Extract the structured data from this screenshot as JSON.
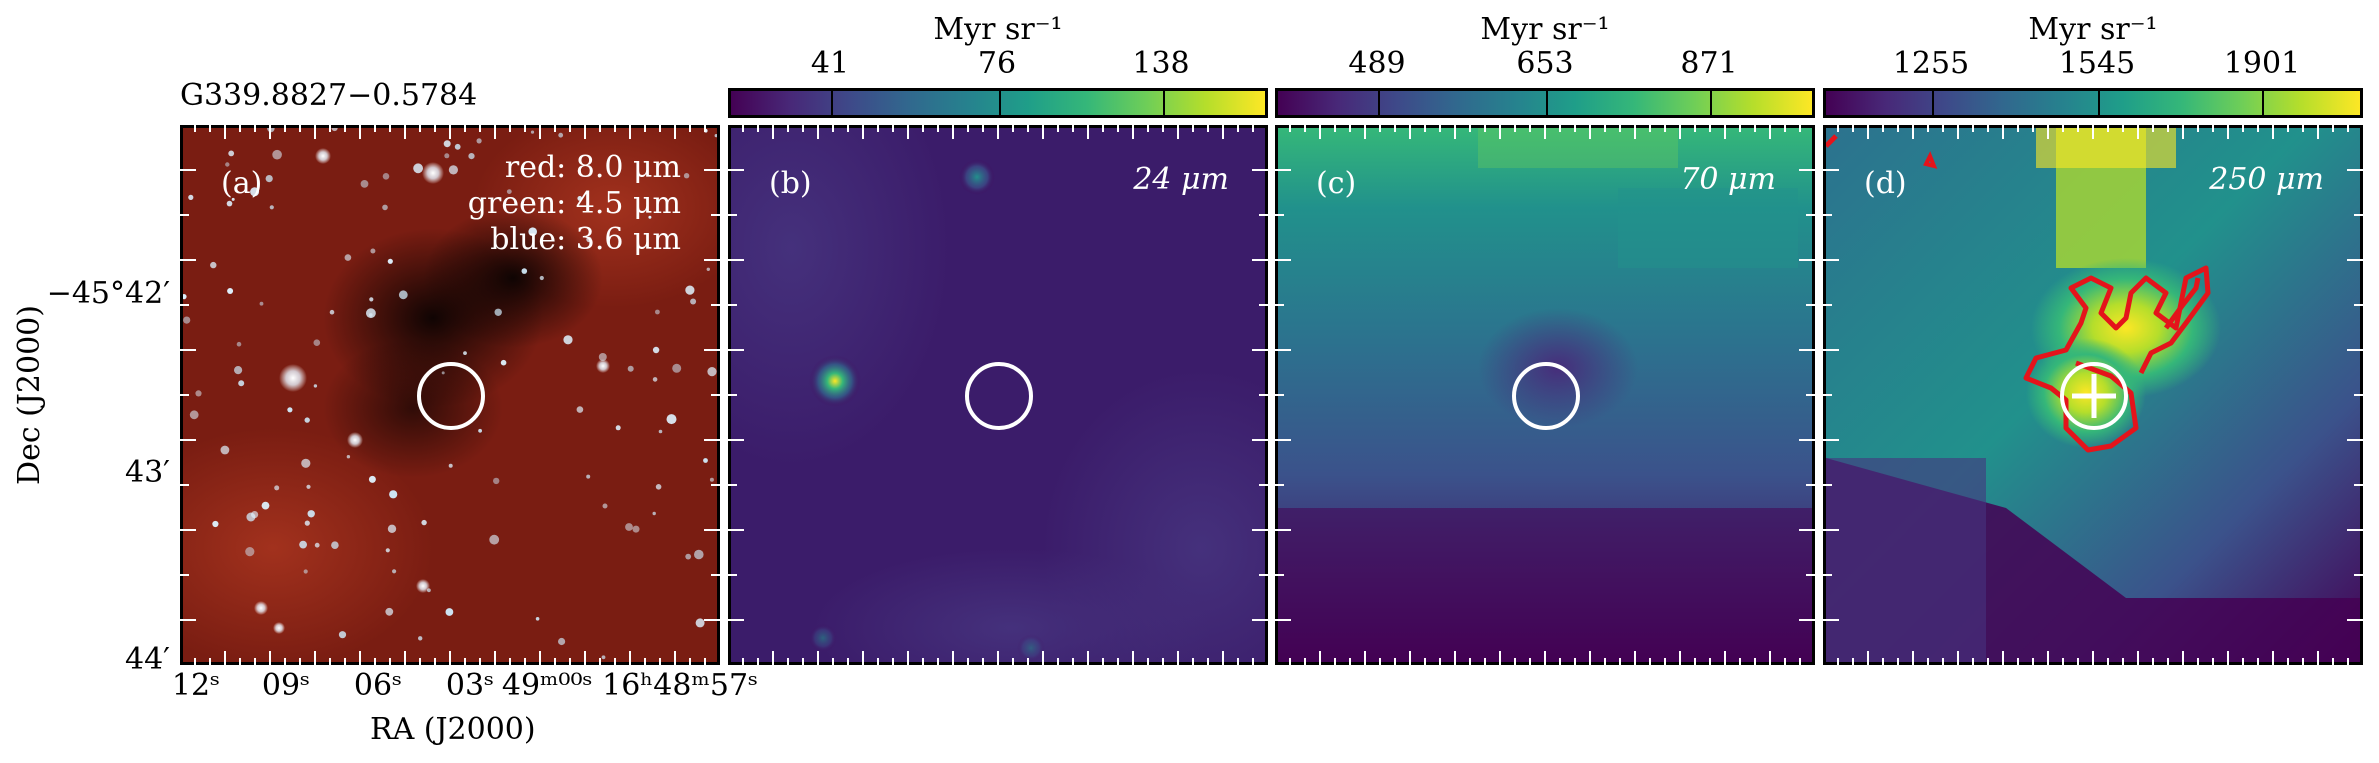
{
  "source_name": "G339.8827−0.5784",
  "axes": {
    "ylabel": "Dec (J2000)",
    "xlabel": "RA (J2000)",
    "yticks": [
      "−45°42′",
      "43′",
      "44′"
    ],
    "xticks": [
      "12ˢ",
      "09ˢ",
      "06ˢ",
      "03ˢ",
      "49ᵐ⁰⁰ˢ 16ʰ48ᵐ57ˢ"
    ]
  },
  "panels": [
    {
      "id": "a",
      "label": "(a)",
      "legend": [
        "red: 8.0 μm",
        "green: 4.5 μm",
        "blue: 3.6 μm"
      ]
    },
    {
      "id": "b",
      "label": "(b)",
      "wavelength": "24 μm",
      "colorbar": {
        "unit": "Myr sr⁻¹",
        "ticks": [
          "41",
          "76",
          "138"
        ]
      }
    },
    {
      "id": "c",
      "label": "(c)",
      "wavelength": "70 μm",
      "colorbar": {
        "unit": "Myr sr⁻¹",
        "ticks": [
          "489",
          "653",
          "871"
        ]
      }
    },
    {
      "id": "d",
      "label": "(d)",
      "wavelength": "250 μm",
      "colorbar": {
        "unit": "Myr sr⁻¹",
        "ticks": [
          "1255",
          "1545",
          "1901"
        ]
      }
    }
  ],
  "colors": {
    "colormap": "viridis",
    "contour": "#e4141b",
    "circle": "#ffffff",
    "rgb_background": "#7a1d12"
  }
}
